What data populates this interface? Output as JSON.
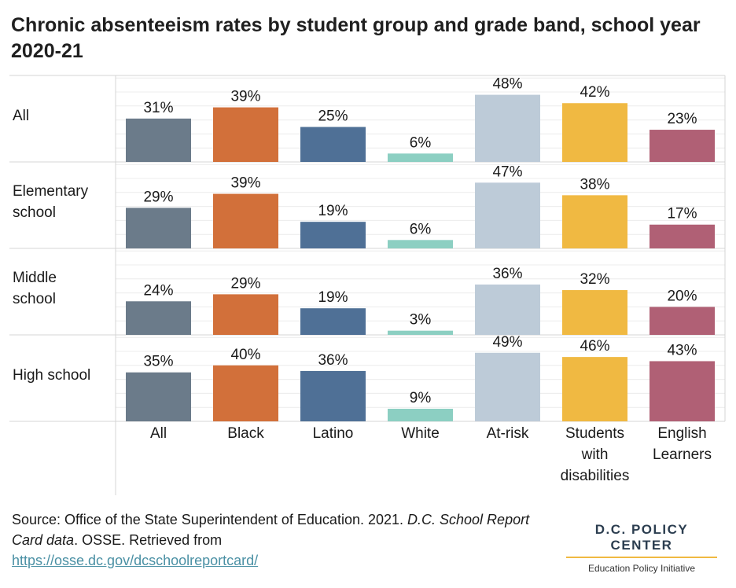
{
  "chart_data": {
    "type": "bar",
    "title": "Chronic absenteeism rates by student group and grade band, school year 2020-21",
    "categories": [
      "All",
      "Black",
      "Latino",
      "White",
      "At-risk",
      "Students with disabilities",
      "English Learners"
    ],
    "category_lines": [
      [
        "All"
      ],
      [
        "Black"
      ],
      [
        "Latino"
      ],
      [
        "White"
      ],
      [
        "At-risk"
      ],
      [
        "Students",
        "with",
        "disabilities"
      ],
      [
        "English",
        "Learners"
      ]
    ],
    "colors": [
      "#6b7b8a",
      "#d2703a",
      "#4f7096",
      "#8ccfc2",
      "#bdcbd8",
      "#f0b942",
      "#b06075"
    ],
    "panels": [
      {
        "name": "All",
        "name_lines": [
          "All"
        ],
        "values": [
          31,
          39,
          25,
          6,
          48,
          42,
          23
        ]
      },
      {
        "name": "Elementary school",
        "name_lines": [
          "Elementary",
          "school"
        ],
        "values": [
          29,
          39,
          19,
          6,
          47,
          38,
          17
        ]
      },
      {
        "name": "Middle school",
        "name_lines": [
          "Middle",
          "school"
        ],
        "values": [
          24,
          29,
          19,
          3,
          36,
          32,
          20
        ]
      },
      {
        "name": "High school",
        "name_lines": [
          "High school"
        ],
        "values": [
          35,
          40,
          36,
          9,
          49,
          46,
          43
        ]
      }
    ],
    "value_suffix": "%",
    "ylim": [
      0,
      60
    ],
    "grid": true
  },
  "source": {
    "prefix": "Source: Office of the State Superintendent of Education. 2021. ",
    "italic": "D.C. School Report Card data",
    "middle": ". OSSE. Retrieved from",
    "link": "https://osse.dc.gov/dcschoolreportcard/"
  },
  "logo": {
    "main": "D.C. POLICY CENTER",
    "sub": "Education Policy Initiative"
  }
}
